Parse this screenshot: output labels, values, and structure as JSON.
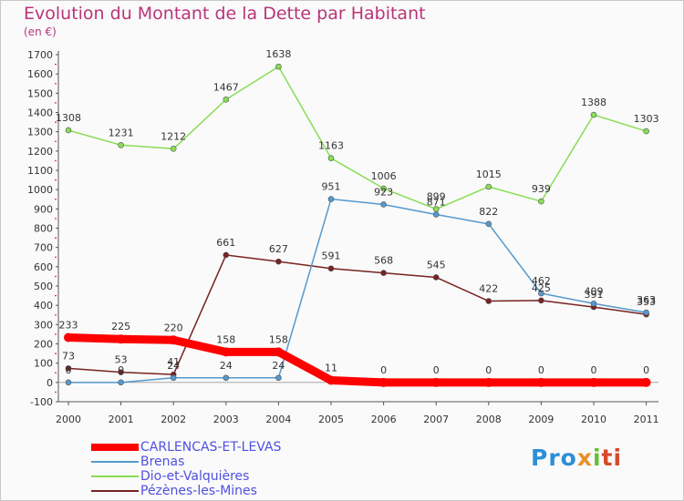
{
  "title": "Evolution du Montant de la Dette par Habitant",
  "subtitle": "(en €)",
  "brand": {
    "p1": "Pro",
    "p2": "x",
    "p3": "i",
    "p4": "ti"
  },
  "colors": {
    "title": "#b8357a",
    "legend_text": "#5050e0",
    "axis": "#555555",
    "tick_marks": "#cc0000"
  },
  "chart_data": {
    "type": "line",
    "title": "Evolution du Montant de la Dette par Habitant",
    "subtitle": "(en €)",
    "xlabel": "",
    "ylabel": "",
    "categories": [
      "2000",
      "2001",
      "2002",
      "2003",
      "2004",
      "2005",
      "2006",
      "2007",
      "2008",
      "2009",
      "2010",
      "2011"
    ],
    "ylim": [
      -100,
      1700
    ],
    "yticks": [
      -100,
      0,
      100,
      200,
      300,
      400,
      500,
      600,
      700,
      800,
      900,
      1000,
      1100,
      1200,
      1300,
      1400,
      1500,
      1600,
      1700
    ],
    "grid": false,
    "legend_position": "bottom-left",
    "series": [
      {
        "name": "CARLENCAS-ET-LEVAS",
        "color": "#ff0000",
        "width": 9,
        "marker": 5,
        "values": [
          233,
          225,
          220,
          158,
          158,
          11,
          0,
          0,
          0,
          0,
          0,
          0
        ],
        "labels": [
          "233",
          "225",
          "220",
          "158",
          "158",
          "11",
          "0",
          "0",
          "0",
          "0",
          "0",
          "0"
        ]
      },
      {
        "name": "Brenas",
        "color": "#5599cc",
        "width": 1.5,
        "marker": 3,
        "values": [
          0,
          0,
          24,
          24,
          24,
          951,
          923,
          871,
          822,
          462,
          409,
          363
        ],
        "labels": [
          "0",
          "0",
          "24",
          "24",
          "24",
          "951",
          "923",
          "871",
          "822",
          "462",
          "409",
          "363"
        ]
      },
      {
        "name": "Dio-et-Valquières",
        "color": "#88dd55",
        "width": 1.5,
        "marker": 3,
        "values": [
          1308,
          1231,
          1212,
          1467,
          1638,
          1163,
          1006,
          899,
          1015,
          939,
          1388,
          1303
        ],
        "labels": [
          "1308",
          "1231",
          "1212",
          "1467",
          "1638",
          "1163",
          "1006",
          "899",
          "1015",
          "939",
          "1388",
          "1303"
        ]
      },
      {
        "name": "Pézènes-les-Mines",
        "color": "#772222",
        "width": 1.5,
        "marker": 3,
        "values": [
          73,
          53,
          41,
          661,
          627,
          591,
          568,
          545,
          422,
          425,
          391,
          353
        ],
        "labels": [
          "73",
          "53",
          "41",
          "661",
          "627",
          "591",
          "568",
          "545",
          "422",
          "425",
          "391",
          "353"
        ]
      }
    ]
  }
}
